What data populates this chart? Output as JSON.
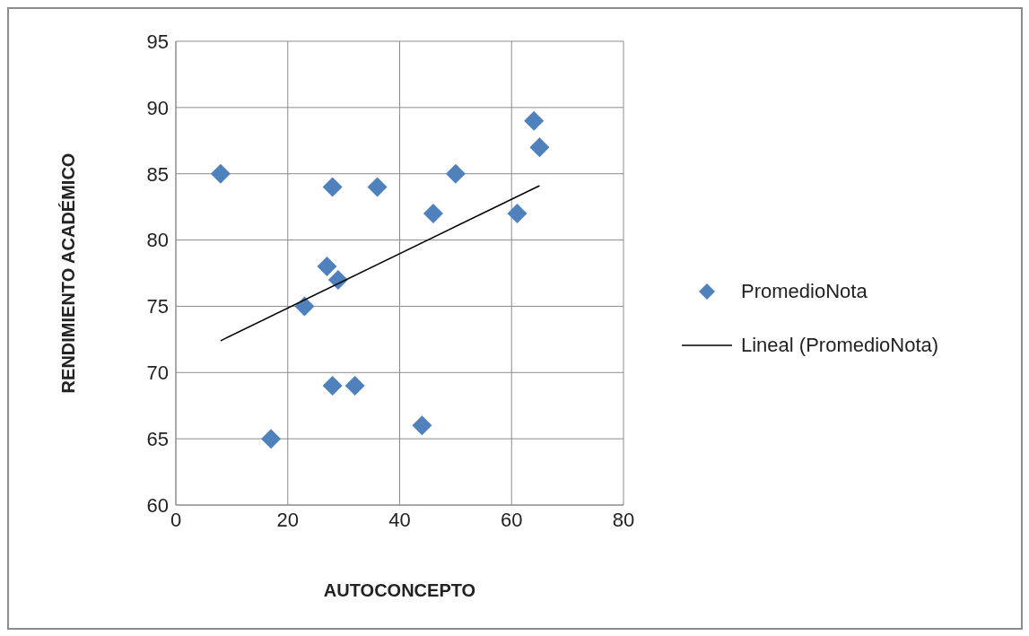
{
  "chart_data": {
    "type": "scatter",
    "xlabel": "AUTOCONCEPTO",
    "ylabel": "RENDIMIENTO ACADÉMICO",
    "xlim": [
      0,
      80
    ],
    "xticks": [
      0,
      20,
      40,
      60,
      80
    ],
    "ylim": [
      60,
      95
    ],
    "yticks": [
      60,
      65,
      70,
      75,
      80,
      85,
      90,
      95
    ],
    "grid": true,
    "legend": "right",
    "series": [
      {
        "name": "PromedioNota",
        "marker": "diamond",
        "color": "#4f81bd",
        "x": [
          8,
          17,
          23,
          27,
          28,
          28,
          29,
          32,
          36,
          44,
          46,
          50,
          61,
          64,
          65
        ],
        "values": [
          85,
          65,
          75,
          78,
          84,
          69,
          77,
          69,
          84,
          66,
          82,
          85,
          82,
          89,
          87
        ]
      },
      {
        "name": "Lineal (PromedioNota)",
        "type": "line",
        "marker": "none",
        "color": "#000000",
        "x": [
          8,
          65
        ],
        "values": [
          72.4,
          84.1
        ]
      }
    ]
  }
}
